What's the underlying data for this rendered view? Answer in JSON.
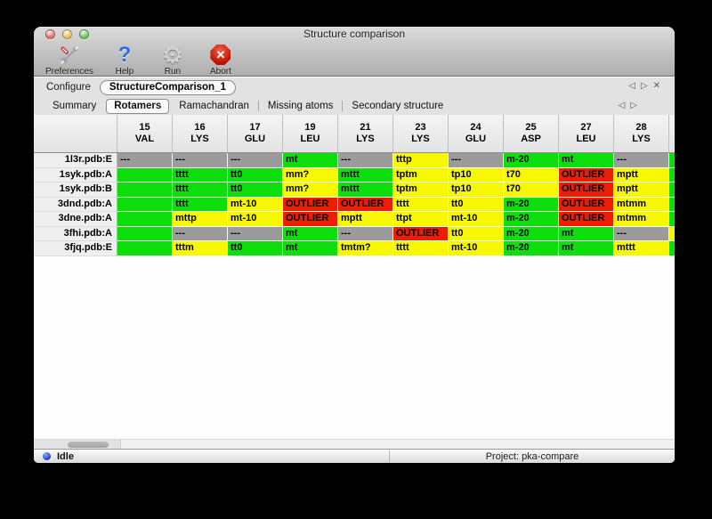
{
  "window": {
    "title": "Structure comparison"
  },
  "toolbar": {
    "items": [
      {
        "label": "Preferences",
        "icon": "tools-icon"
      },
      {
        "label": "Help",
        "icon": "question-mark-icon",
        "glyph": "?"
      },
      {
        "label": "Run",
        "icon": "gear-icon",
        "glyph": "⚙"
      },
      {
        "label": "Abort",
        "icon": "stop-x-icon",
        "glyph": "✕"
      }
    ]
  },
  "configure": {
    "label": "Configure",
    "config_tab": "StructureComparison_1",
    "nav": {
      "prev": "◁",
      "next": "▷",
      "close": "✕"
    }
  },
  "tabs": {
    "items": [
      "Summary",
      "Rotamers",
      "Ramachandran",
      "Missing atoms",
      "Secondary structure"
    ],
    "selected": "Rotamers",
    "nav": {
      "prev": "◁",
      "next": "▷"
    }
  },
  "table": {
    "columns": [
      {
        "num": "15",
        "res": "VAL"
      },
      {
        "num": "16",
        "res": "LYS"
      },
      {
        "num": "17",
        "res": "GLU"
      },
      {
        "num": "19",
        "res": "LEU"
      },
      {
        "num": "21",
        "res": "LYS"
      },
      {
        "num": "23",
        "res": "LYS"
      },
      {
        "num": "24",
        "res": "GLU"
      },
      {
        "num": "25",
        "res": "ASP"
      },
      {
        "num": "27",
        "res": "LEU"
      },
      {
        "num": "28",
        "res": "LYS"
      }
    ],
    "rows": [
      {
        "label": "1l3r.pdb:E",
        "edge": "green",
        "cells": [
          {
            "t": "---",
            "c": "gray"
          },
          {
            "t": "---",
            "c": "gray"
          },
          {
            "t": "---",
            "c": "gray"
          },
          {
            "t": "mt",
            "c": "green"
          },
          {
            "t": "---",
            "c": "gray"
          },
          {
            "t": "tttp",
            "c": "yellow"
          },
          {
            "t": "---",
            "c": "gray"
          },
          {
            "t": "m-20",
            "c": "green"
          },
          {
            "t": "mt",
            "c": "green"
          },
          {
            "t": "---",
            "c": "gray"
          }
        ]
      },
      {
        "label": "1syk.pdb:A",
        "edge": "green",
        "cells": [
          {
            "t": "",
            "c": "green"
          },
          {
            "t": "tttt",
            "c": "green"
          },
          {
            "t": "tt0",
            "c": "green"
          },
          {
            "t": "mm?",
            "c": "yellow"
          },
          {
            "t": "mttt",
            "c": "green"
          },
          {
            "t": "tptm",
            "c": "yellow"
          },
          {
            "t": "tp10",
            "c": "yellow"
          },
          {
            "t": "t70",
            "c": "yellow"
          },
          {
            "t": "OUTLIER",
            "c": "red"
          },
          {
            "t": "mptt",
            "c": "yellow"
          }
        ]
      },
      {
        "label": "1syk.pdb:B",
        "edge": "green",
        "cells": [
          {
            "t": "",
            "c": "green"
          },
          {
            "t": "tttt",
            "c": "green"
          },
          {
            "t": "tt0",
            "c": "green"
          },
          {
            "t": "mm?",
            "c": "yellow"
          },
          {
            "t": "mttt",
            "c": "green"
          },
          {
            "t": "tptm",
            "c": "yellow"
          },
          {
            "t": "tp10",
            "c": "yellow"
          },
          {
            "t": "t70",
            "c": "yellow"
          },
          {
            "t": "OUTLIER",
            "c": "red"
          },
          {
            "t": "mptt",
            "c": "yellow"
          }
        ]
      },
      {
        "label": "3dnd.pdb:A",
        "edge": "green",
        "cells": [
          {
            "t": "",
            "c": "green"
          },
          {
            "t": "tttt",
            "c": "green"
          },
          {
            "t": "mt-10",
            "c": "yellow"
          },
          {
            "t": "OUTLIER",
            "c": "red"
          },
          {
            "t": "OUTLIER",
            "c": "red"
          },
          {
            "t": "tttt",
            "c": "yellow"
          },
          {
            "t": "tt0",
            "c": "yellow"
          },
          {
            "t": "m-20",
            "c": "green"
          },
          {
            "t": "OUTLIER",
            "c": "red"
          },
          {
            "t": "mtmm",
            "c": "yellow"
          }
        ]
      },
      {
        "label": "3dne.pdb:A",
        "edge": "green",
        "cells": [
          {
            "t": "",
            "c": "green"
          },
          {
            "t": "mttp",
            "c": "yellow"
          },
          {
            "t": "mt-10",
            "c": "yellow"
          },
          {
            "t": "OUTLIER",
            "c": "red"
          },
          {
            "t": "mptt",
            "c": "yellow"
          },
          {
            "t": "ttpt",
            "c": "yellow"
          },
          {
            "t": "mt-10",
            "c": "yellow"
          },
          {
            "t": "m-20",
            "c": "green"
          },
          {
            "t": "OUTLIER",
            "c": "red"
          },
          {
            "t": "mtmm",
            "c": "yellow"
          }
        ]
      },
      {
        "label": "3fhi.pdb:A",
        "edge": "yellow",
        "cells": [
          {
            "t": "",
            "c": "green"
          },
          {
            "t": "---",
            "c": "gray"
          },
          {
            "t": "---",
            "c": "gray"
          },
          {
            "t": "mt",
            "c": "green"
          },
          {
            "t": "---",
            "c": "gray"
          },
          {
            "t": "OUTLIER",
            "c": "red"
          },
          {
            "t": "tt0",
            "c": "yellow"
          },
          {
            "t": "m-20",
            "c": "green"
          },
          {
            "t": "mt",
            "c": "green"
          },
          {
            "t": "---",
            "c": "gray"
          }
        ]
      },
      {
        "label": "3fjq.pdb:E",
        "edge": "green",
        "cells": [
          {
            "t": "",
            "c": "green"
          },
          {
            "t": "tttm",
            "c": "yellow"
          },
          {
            "t": "tt0",
            "c": "green"
          },
          {
            "t": "mt",
            "c": "green"
          },
          {
            "t": "tmtm?",
            "c": "yellow"
          },
          {
            "t": "tttt",
            "c": "yellow"
          },
          {
            "t": "mt-10",
            "c": "yellow"
          },
          {
            "t": "m-20",
            "c": "green"
          },
          {
            "t": "mt",
            "c": "green"
          },
          {
            "t": "mttt",
            "c": "yellow"
          }
        ]
      }
    ]
  },
  "status_bar": {
    "state": "Idle",
    "project": "Project: pka-compare"
  },
  "colors": {
    "cell_green": "#0ddf0d",
    "cell_yellow": "#f7f700",
    "cell_red": "#ec1d00",
    "cell_gray": "#9b9b9b",
    "traffic_close": "#ec6a5e",
    "traffic_minimize": "#f5bf4f",
    "traffic_zoom": "#61c654",
    "status_dot_blue": "#1733c6"
  }
}
